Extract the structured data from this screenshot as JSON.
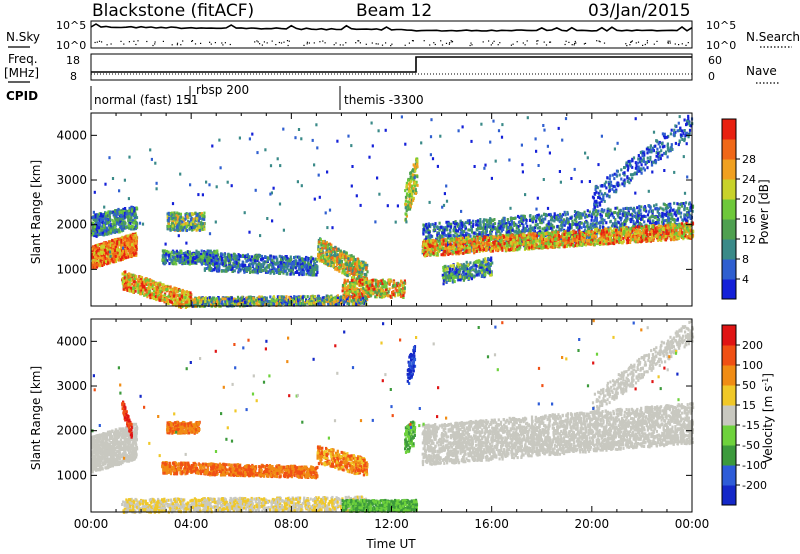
{
  "header": {
    "station": "Blackstone (fitACF)",
    "beam": "Beam 12",
    "date": "03/Jan/2015"
  },
  "left_labels": {
    "nsky": "N.Sky",
    "freq_line1": "Freq.",
    "freq_line2": "[MHz]",
    "cpid": "CPID"
  },
  "right_labels": {
    "nsearch": "N.Search",
    "nave": "Nave"
  },
  "noise_panel": {
    "y_top_tick": "10^5",
    "y_bottom_tick": "10^0"
  },
  "freq_panel": {
    "left_ticks": [
      "18",
      "8"
    ],
    "right_ticks": [
      "60",
      "0"
    ]
  },
  "cpid_segments": [
    {
      "label": "normal (fast) 151",
      "start_hour": 0.0
    },
    {
      "label": "rbsp 200",
      "start_hour": 3.9
    },
    {
      "label": "themis -3300",
      "start_hour": 10.1
    }
  ],
  "chart_data": [
    {
      "type": "heatmap",
      "panel": "power",
      "ylabel": "Slant Range [km]",
      "xlim_hours": [
        0,
        24
      ],
      "ylim_km": [
        180,
        4500
      ],
      "y_ticks": [
        "1000",
        "2000",
        "3000",
        "4000"
      ],
      "x_ticks": [
        "00:00",
        "04:00",
        "08:00",
        "12:00",
        "16:00",
        "20:00",
        "00:00"
      ],
      "colorbar": {
        "label": "Power [dB]",
        "ticks": [
          "4",
          "8",
          "12",
          "16",
          "20",
          "24",
          "28"
        ],
        "colors": [
          "#1420d8",
          "#2f5fd0",
          "#3a8a88",
          "#4fa050",
          "#6ec83a",
          "#c8d22a",
          "#f0a020",
          "#f06818",
          "#e82010"
        ]
      }
    },
    {
      "type": "heatmap",
      "panel": "velocity",
      "ylabel": "Slant Range [km]",
      "xlabel": "Time UT",
      "xlim_hours": [
        0,
        24
      ],
      "ylim_km": [
        180,
        4500
      ],
      "y_ticks": [
        "1000",
        "2000",
        "3000",
        "4000"
      ],
      "x_ticks": [
        "00:00",
        "04:00",
        "08:00",
        "12:00",
        "16:00",
        "20:00",
        "00:00"
      ],
      "colorbar": {
        "label": "Velocity [m s",
        "label_superscript": "-1",
        "label_close": "]",
        "ticks": [
          "200",
          "100",
          "50",
          "15",
          "-15",
          "-50",
          "-100",
          "-200"
        ],
        "colors": [
          "#1428c8",
          "#2e5cd8",
          "#3c9a3c",
          "#6ed23c",
          "#c8c8c0",
          "#f0c828",
          "#f08c14",
          "#f05014",
          "#e01414"
        ]
      }
    }
  ]
}
